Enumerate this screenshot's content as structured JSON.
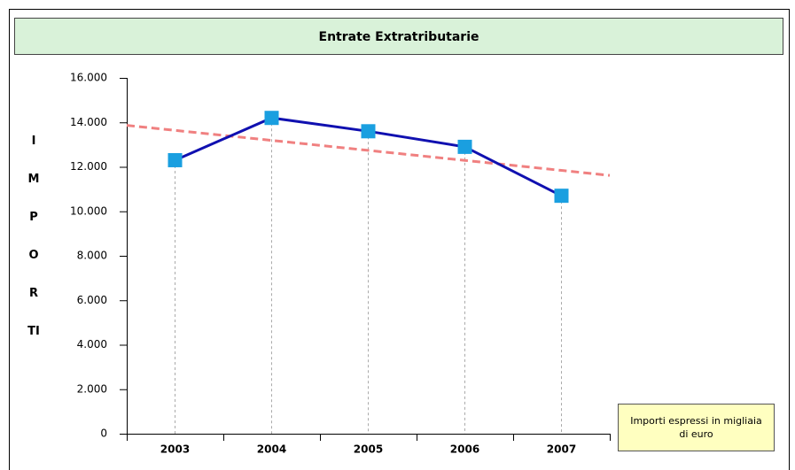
{
  "chart_data": {
    "type": "line",
    "title": "Entrate Extratributarie",
    "ylabel": "IMPORTI",
    "note": "Importi espressi in migliaia di euro",
    "categories": [
      "2003",
      "2004",
      "2005",
      "2006",
      "2007"
    ],
    "series": [
      {
        "color": "#1010b0",
        "marker_color": "#1a9fe0",
        "values": [
          12300,
          14200,
          13600,
          12900,
          10700
        ]
      }
    ],
    "trend": {
      "color": "#f08080",
      "values": [
        13640,
        13190,
        12740,
        12290,
        11840
      ]
    },
    "ylim": [
      0,
      16000
    ],
    "yticks": [
      0,
      {
        "value": 2000,
        "label": "2.000"
      },
      {
        "value": 4000,
        "label": "4.000"
      },
      {
        "value": 6000,
        "label": "6.000"
      },
      {
        "value": 8000,
        "label": "8.000"
      },
      {
        "value": 10000,
        "label": "10.000"
      },
      {
        "value": 12000,
        "label": "12.000"
      },
      {
        "value": 14000,
        "label": "14.000"
      },
      {
        "value": 16000,
        "label": "16.000"
      }
    ]
  }
}
